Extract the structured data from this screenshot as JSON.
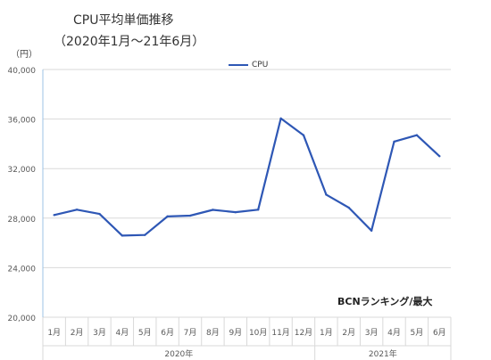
{
  "header": {
    "title": "CPU平均単価推移",
    "subtitle": "（2020年1月～21年6月）",
    "y_unit": "（円）",
    "source_note": "BCNランキング/最大"
  },
  "chart_data": {
    "type": "line",
    "categories": [
      "1月",
      "2月",
      "3月",
      "4月",
      "5月",
      "6月",
      "7月",
      "8月",
      "9月",
      "10月",
      "11月",
      "12月",
      "1月",
      "2月",
      "3月",
      "4月",
      "5月",
      "6月"
    ],
    "groups": [
      {
        "label": "2020年",
        "start": 0,
        "end": 11
      },
      {
        "label": "2021年",
        "start": 12,
        "end": 17
      }
    ],
    "series": [
      {
        "name": "CPU",
        "color": "#2e57b5",
        "values": [
          28250,
          28680,
          28340,
          26590,
          26640,
          28140,
          28200,
          28670,
          28480,
          28680,
          36050,
          34700,
          29900,
          28840,
          26990,
          34180,
          34700,
          33000
        ]
      }
    ],
    "ylim": [
      20000,
      40000
    ],
    "yticks": [
      "20,000",
      "24,000",
      "28,000",
      "32,000",
      "36,000",
      "40,000"
    ],
    "ytick_values": [
      20000,
      24000,
      28000,
      32000,
      36000,
      40000
    ],
    "grid": true,
    "legend": "top-center"
  }
}
